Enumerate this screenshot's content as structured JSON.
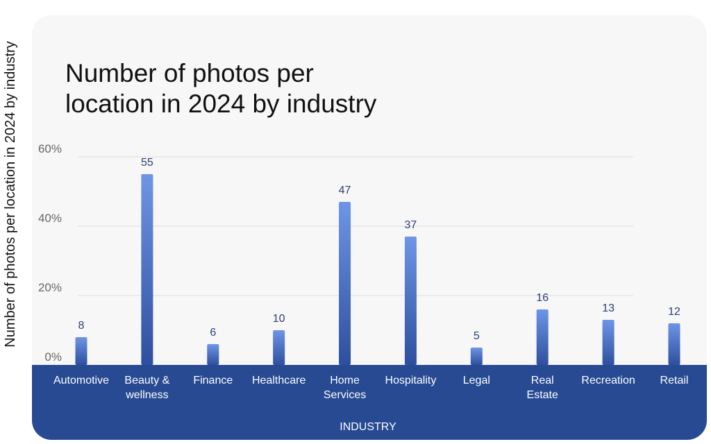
{
  "chart_data": {
    "type": "bar",
    "title": "Number of photos per location in 2024 by industry",
    "title_lines": [
      "Number of photos per",
      "location in 2024 by industry"
    ],
    "ylabel": "Number of photos per location in 2024 by industry",
    "xlabel": "INDUSTRY",
    "yticks": [
      "0%",
      "20%",
      "40%",
      "60%"
    ],
    "ylim": [
      0,
      60
    ],
    "grid": true,
    "categories": [
      "Automotive",
      "Beauty & wellness",
      "Finance",
      "Healthcare",
      "Home Services",
      "Hospitality",
      "Legal",
      "Real Estate",
      "Recreation",
      "Retail"
    ],
    "category_lines": [
      [
        "Automotive"
      ],
      [
        "Beauty &",
        "wellness"
      ],
      [
        "Finance"
      ],
      [
        "Healthcare"
      ],
      [
        "Home",
        "Services"
      ],
      [
        "Hospitality"
      ],
      [
        "Legal"
      ],
      [
        "Real",
        "Estate"
      ],
      [
        "Recreation"
      ],
      [
        "Retail"
      ]
    ],
    "values": [
      8,
      55,
      6,
      10,
      47,
      37,
      5,
      16,
      13,
      12
    ],
    "value_labels": [
      "8",
      "55",
      "6",
      "10",
      "47",
      "37",
      "5",
      "16",
      "13",
      "12"
    ],
    "colors": {
      "bar_top": "#6f95e6",
      "bar_bottom": "#2d4f9e",
      "band": "#274a93",
      "panel": "#f7f7f7",
      "value_label": "#2c3f73",
      "title": "#111111",
      "tick": "#666666",
      "grid": "#dddddd"
    }
  }
}
